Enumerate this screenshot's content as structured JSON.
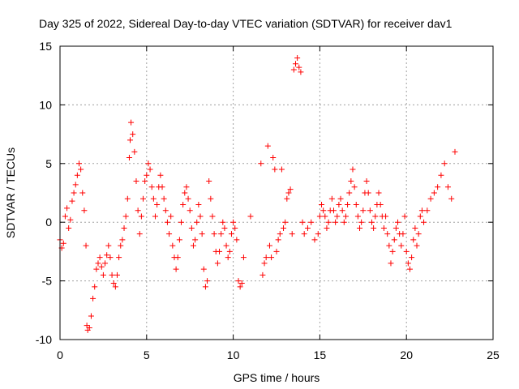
{
  "chart_data": {
    "type": "scatter",
    "title": "Day 325 of 2022, Sidereal Day-to-day VTEC variation (SDTVAR) for receiver dav1",
    "xlabel": "GPS time / hours",
    "ylabel": "SDTVAR / TECUs",
    "xlim": [
      0,
      25
    ],
    "ylim": [
      -10,
      15
    ],
    "xticks": [
      0,
      5,
      10,
      15,
      20,
      25
    ],
    "xtick_labels": [
      "0",
      "5",
      "10",
      "15",
      "20",
      "25"
    ],
    "yticks": [
      -10,
      -5,
      0,
      5,
      10,
      15
    ],
    "ytick_labels": [
      "-10",
      "-5",
      "0",
      "5",
      "10",
      "15"
    ],
    "grid": true,
    "marker": "+",
    "color": "#ff0000",
    "series": [
      {
        "name": "dav1",
        "points": [
          [
            0.0,
            -1.5
          ],
          [
            0.1,
            -2.2
          ],
          [
            0.2,
            -1.8
          ],
          [
            0.3,
            0.5
          ],
          [
            0.4,
            1.2
          ],
          [
            0.5,
            -0.5
          ],
          [
            0.6,
            0.2
          ],
          [
            0.7,
            1.8
          ],
          [
            0.8,
            2.5
          ],
          [
            0.9,
            3.2
          ],
          [
            1.0,
            4.0
          ],
          [
            1.1,
            5.0
          ],
          [
            1.2,
            4.5
          ],
          [
            1.3,
            2.5
          ],
          [
            1.4,
            1.0
          ],
          [
            1.5,
            -2.0
          ],
          [
            1.55,
            -8.8
          ],
          [
            1.6,
            -9.2
          ],
          [
            1.7,
            -9.0
          ],
          [
            1.8,
            -8.0
          ],
          [
            1.9,
            -6.5
          ],
          [
            2.0,
            -5.5
          ],
          [
            2.1,
            -4.0
          ],
          [
            2.2,
            -3.5
          ],
          [
            2.3,
            -3.0
          ],
          [
            2.4,
            -3.8
          ],
          [
            2.5,
            -4.5
          ],
          [
            2.6,
            -3.5
          ],
          [
            2.7,
            -2.8
          ],
          [
            2.8,
            -2.0
          ],
          [
            2.9,
            -3.0
          ],
          [
            3.0,
            -4.5
          ],
          [
            3.1,
            -5.2
          ],
          [
            3.2,
            -5.5
          ],
          [
            3.3,
            -4.5
          ],
          [
            3.4,
            -3.0
          ],
          [
            3.5,
            -2.0
          ],
          [
            3.6,
            -1.5
          ],
          [
            3.7,
            -0.5
          ],
          [
            3.8,
            0.5
          ],
          [
            3.9,
            2.0
          ],
          [
            4.0,
            5.5
          ],
          [
            4.05,
            7.0
          ],
          [
            4.1,
            8.5
          ],
          [
            4.2,
            7.5
          ],
          [
            4.3,
            6.0
          ],
          [
            4.4,
            3.5
          ],
          [
            4.5,
            1.0
          ],
          [
            4.6,
            -1.0
          ],
          [
            4.7,
            0.5
          ],
          [
            4.8,
            2.0
          ],
          [
            4.9,
            3.5
          ],
          [
            5.0,
            4.0
          ],
          [
            5.1,
            5.0
          ],
          [
            5.2,
            4.5
          ],
          [
            5.3,
            3.0
          ],
          [
            5.4,
            2.0
          ],
          [
            5.5,
            0.5
          ],
          [
            5.6,
            1.5
          ],
          [
            5.7,
            3.0
          ],
          [
            5.8,
            4.0
          ],
          [
            5.9,
            3.0
          ],
          [
            6.0,
            2.0
          ],
          [
            6.1,
            1.0
          ],
          [
            6.2,
            0.0
          ],
          [
            6.3,
            -1.0
          ],
          [
            6.4,
            0.5
          ],
          [
            6.5,
            -2.0
          ],
          [
            6.6,
            -3.0
          ],
          [
            6.7,
            -4.0
          ],
          [
            6.8,
            -3.0
          ],
          [
            6.9,
            -1.5
          ],
          [
            7.0,
            0.0
          ],
          [
            7.1,
            1.5
          ],
          [
            7.2,
            2.5
          ],
          [
            7.3,
            3.0
          ],
          [
            7.4,
            2.0
          ],
          [
            7.5,
            1.0
          ],
          [
            7.6,
            -0.5
          ],
          [
            7.7,
            -2.0
          ],
          [
            7.8,
            -1.5
          ],
          [
            7.9,
            0.0
          ],
          [
            8.0,
            1.5
          ],
          [
            8.1,
            0.5
          ],
          [
            8.2,
            -1.0
          ],
          [
            8.3,
            -4.0
          ],
          [
            8.4,
            -5.5
          ],
          [
            8.5,
            -5.0
          ],
          [
            8.6,
            3.5
          ],
          [
            8.7,
            2.0
          ],
          [
            8.8,
            0.5
          ],
          [
            8.9,
            -1.0
          ],
          [
            9.0,
            -2.5
          ],
          [
            9.1,
            -3.5
          ],
          [
            9.2,
            -2.5
          ],
          [
            9.3,
            -1.0
          ],
          [
            9.4,
            0.0
          ],
          [
            9.5,
            -0.5
          ],
          [
            9.6,
            -2.0
          ],
          [
            9.7,
            -3.0
          ],
          [
            9.8,
            -2.5
          ],
          [
            9.9,
            -1.0
          ],
          [
            10.0,
            0.0
          ],
          [
            10.1,
            -0.5
          ],
          [
            10.2,
            -1.5
          ],
          [
            10.3,
            -5.0
          ],
          [
            10.4,
            -5.5
          ],
          [
            10.5,
            -5.2
          ],
          [
            10.6,
            -3.0
          ],
          [
            11.0,
            0.5
          ],
          [
            11.6,
            5.0
          ],
          [
            11.7,
            -4.5
          ],
          [
            11.8,
            -3.5
          ],
          [
            11.9,
            -3.0
          ],
          [
            12.0,
            6.5
          ],
          [
            12.1,
            -2.0
          ],
          [
            12.2,
            -3.0
          ],
          [
            12.3,
            5.5
          ],
          [
            12.4,
            4.5
          ],
          [
            12.5,
            -2.5
          ],
          [
            12.6,
            -1.5
          ],
          [
            12.7,
            -1.0
          ],
          [
            12.8,
            4.5
          ],
          [
            12.9,
            -0.5
          ],
          [
            13.0,
            0.0
          ],
          [
            13.1,
            2.0
          ],
          [
            13.2,
            2.5
          ],
          [
            13.3,
            2.8
          ],
          [
            13.4,
            -1.0
          ],
          [
            13.5,
            13.0
          ],
          [
            13.6,
            13.5
          ],
          [
            13.7,
            14.0
          ],
          [
            13.8,
            13.2
          ],
          [
            13.9,
            12.8
          ],
          [
            14.0,
            0.0
          ],
          [
            14.1,
            -1.0
          ],
          [
            14.3,
            -0.5
          ],
          [
            14.5,
            0.0
          ],
          [
            14.7,
            -1.5
          ],
          [
            14.9,
            -1.0
          ],
          [
            15.0,
            0.5
          ],
          [
            15.1,
            1.5
          ],
          [
            15.2,
            1.0
          ],
          [
            15.3,
            0.5
          ],
          [
            15.4,
            -0.5
          ],
          [
            15.5,
            0.0
          ],
          [
            15.6,
            1.0
          ],
          [
            15.7,
            2.0
          ],
          [
            15.8,
            1.0
          ],
          [
            15.9,
            0.0
          ],
          [
            16.0,
            0.5
          ],
          [
            16.1,
            1.5
          ],
          [
            16.2,
            2.0
          ],
          [
            16.3,
            1.0
          ],
          [
            16.4,
            0.0
          ],
          [
            16.5,
            0.5
          ],
          [
            16.6,
            1.5
          ],
          [
            16.7,
            2.5
          ],
          [
            16.8,
            3.5
          ],
          [
            16.9,
            4.5
          ],
          [
            17.0,
            3.0
          ],
          [
            17.1,
            1.5
          ],
          [
            17.2,
            0.5
          ],
          [
            17.3,
            -0.5
          ],
          [
            17.4,
            0.0
          ],
          [
            17.5,
            1.0
          ],
          [
            17.6,
            2.5
          ],
          [
            17.7,
            3.5
          ],
          [
            17.8,
            2.5
          ],
          [
            17.9,
            1.0
          ],
          [
            18.0,
            0.0
          ],
          [
            18.1,
            -0.5
          ],
          [
            18.2,
            0.5
          ],
          [
            18.3,
            1.5
          ],
          [
            18.4,
            2.5
          ],
          [
            18.5,
            1.5
          ],
          [
            18.6,
            0.5
          ],
          [
            18.7,
            -0.5
          ],
          [
            18.8,
            0.5
          ],
          [
            18.9,
            -1.0
          ],
          [
            19.0,
            -2.0
          ],
          [
            19.1,
            -3.5
          ],
          [
            19.2,
            -2.5
          ],
          [
            19.3,
            -1.5
          ],
          [
            19.4,
            -0.5
          ],
          [
            19.5,
            0.0
          ],
          [
            19.6,
            -1.0
          ],
          [
            19.7,
            -2.0
          ],
          [
            19.8,
            -1.0
          ],
          [
            19.9,
            0.5
          ],
          [
            20.0,
            -2.5
          ],
          [
            20.1,
            -3.5
          ],
          [
            20.2,
            -4.0
          ],
          [
            20.3,
            -3.0
          ],
          [
            20.4,
            -1.5
          ],
          [
            20.5,
            -0.5
          ],
          [
            20.6,
            -2.0
          ],
          [
            20.7,
            -1.0
          ],
          [
            20.8,
            0.5
          ],
          [
            20.9,
            1.0
          ],
          [
            21.0,
            0.0
          ],
          [
            21.2,
            1.0
          ],
          [
            21.4,
            2.0
          ],
          [
            21.6,
            2.5
          ],
          [
            21.8,
            3.0
          ],
          [
            22.0,
            4.0
          ],
          [
            22.2,
            5.0
          ],
          [
            22.4,
            3.0
          ],
          [
            22.6,
            2.0
          ],
          [
            22.8,
            6.0
          ]
        ]
      }
    ]
  }
}
